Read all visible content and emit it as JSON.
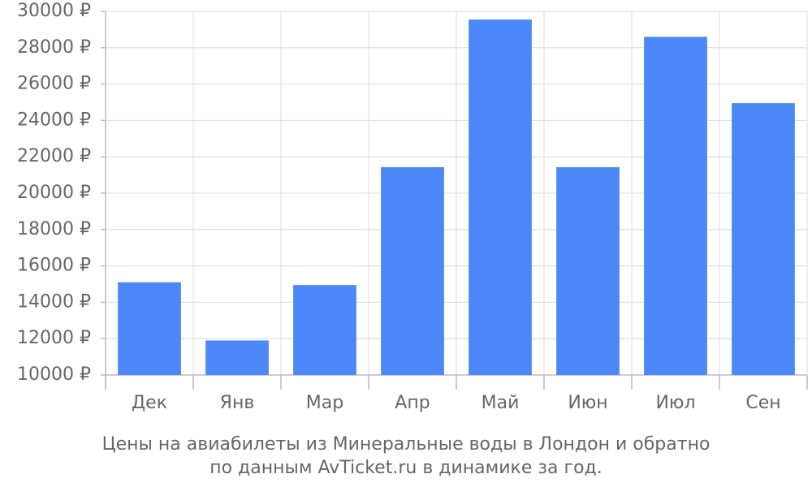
{
  "chart_data": {
    "type": "bar",
    "title": "Цены на авиабилеты из Минеральные воды в Лондон и обратно",
    "subtitle": "по данным AvTicket.ru в динамике за год.",
    "categories": [
      "Дек",
      "Янв",
      "Мар",
      "Апр",
      "Май",
      "Июн",
      "Июл",
      "Сен"
    ],
    "values": [
      15100,
      11900,
      14950,
      21430,
      29550,
      21430,
      28600,
      24950
    ],
    "color": "#4d88f8",
    "ylim": [
      10000,
      30000
    ],
    "yticks": [
      {
        "value": 10000,
        "label": "10000 ₽"
      },
      {
        "value": 12000,
        "label": "12000 ₽"
      },
      {
        "value": 14000,
        "label": "14000 ₽"
      },
      {
        "value": 16000,
        "label": "16000 ₽"
      },
      {
        "value": 18000,
        "label": "18000 ₽"
      },
      {
        "value": 20000,
        "label": "20000 ₽"
      },
      {
        "value": 22000,
        "label": "22000 ₽"
      },
      {
        "value": 24000,
        "label": "24000 ₽"
      },
      {
        "value": 26000,
        "label": "26000 ₽"
      },
      {
        "value": 28000,
        "label": "28000 ₽"
      },
      {
        "value": 30000,
        "label": "30000 ₽"
      }
    ],
    "grid": true
  }
}
